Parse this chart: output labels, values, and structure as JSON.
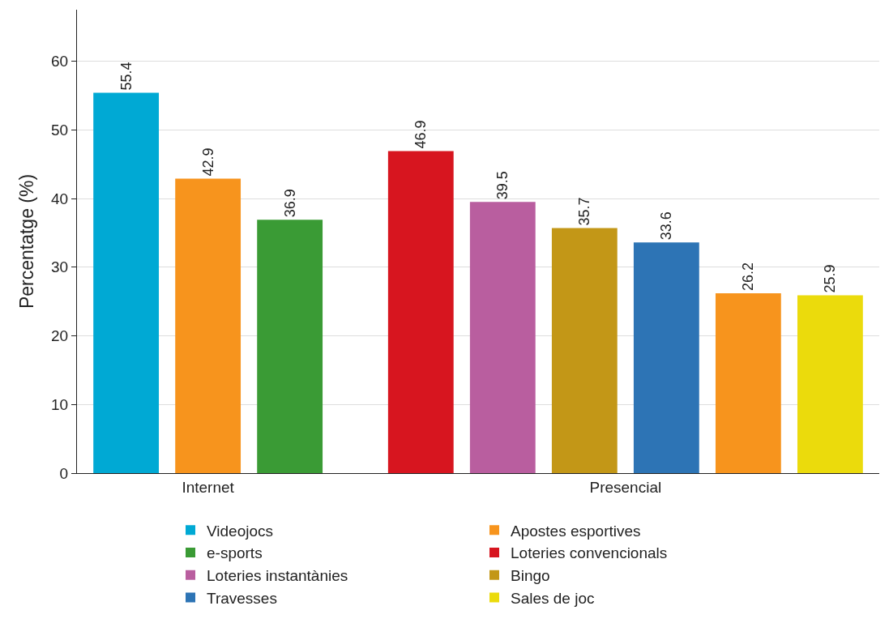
{
  "chart_data": {
    "type": "bar",
    "ylabel": "Percentatge (%)",
    "categories": [
      "Internet",
      "Presencial"
    ],
    "series": [
      {
        "name": "Videojocs",
        "color": "#00a9d4",
        "values": [
          55.4,
          null
        ]
      },
      {
        "name": "Apostes esportives",
        "color": "#f7941d",
        "values": [
          42.9,
          26.2
        ]
      },
      {
        "name": "e-sports",
        "color": "#3a9b35",
        "values": [
          36.9,
          null
        ]
      },
      {
        "name": "Loteries convencionals",
        "color": "#d7151f",
        "values": [
          null,
          46.9
        ]
      },
      {
        "name": "Loteries instantànies",
        "color": "#b95e9f",
        "values": [
          null,
          39.5
        ]
      },
      {
        "name": "Bingo",
        "color": "#c39717",
        "values": [
          null,
          35.7
        ]
      },
      {
        "name": "Travesses",
        "color": "#2d74b5",
        "values": [
          null,
          33.6
        ]
      },
      {
        "name": "Sales de joc",
        "color": "#ebdb0c",
        "values": [
          null,
          25.9
        ]
      }
    ],
    "ylim": [
      0,
      67.5
    ],
    "yticks": [
      0,
      10,
      20,
      30,
      40,
      50,
      60
    ],
    "grid": "y",
    "legend": "bottom",
    "data_labels": true
  }
}
